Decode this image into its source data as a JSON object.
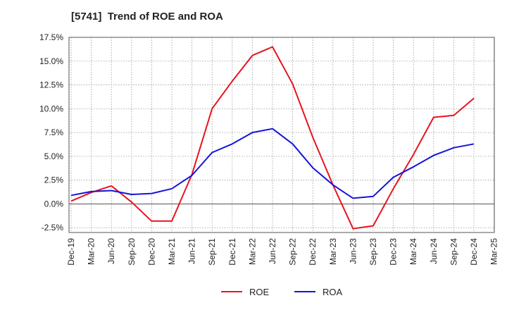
{
  "chart_data": {
    "type": "line",
    "title": "[5741]  Trend of ROE and ROA",
    "xlabel": "",
    "ylabel": "",
    "x": [
      "Dec-19",
      "Mar-20",
      "Jun-20",
      "Sep-20",
      "Dec-20",
      "Mar-21",
      "Jun-21",
      "Sep-21",
      "Dec-21",
      "Mar-22",
      "Jun-22",
      "Sep-22",
      "Dec-22",
      "Mar-23",
      "Jun-23",
      "Sep-23",
      "Dec-23",
      "Mar-24",
      "Jun-24",
      "Sep-24",
      "Dec-24",
      "Mar-25"
    ],
    "yticks": [
      "17.5%",
      "15.0%",
      "12.5%",
      "10.0%",
      "7.5%",
      "5.0%",
      "2.5%",
      "0.0%",
      "-2.5%"
    ],
    "ylim": [
      -3.0,
      17.5
    ],
    "grid": true,
    "legend_position": "bottom",
    "series": [
      {
        "name": "ROE",
        "color": "#e8141e",
        "values": [
          0.3,
          1.2,
          1.9,
          0.2,
          -1.8,
          -1.8,
          3.1,
          10.0,
          12.9,
          15.6,
          16.5,
          12.6,
          7.0,
          2.0,
          -2.6,
          -2.3,
          1.6,
          5.2,
          9.1,
          9.3,
          11.1,
          null
        ]
      },
      {
        "name": "ROA",
        "color": "#1414dc",
        "values": [
          0.9,
          1.3,
          1.4,
          1.0,
          1.1,
          1.6,
          3.0,
          5.4,
          6.3,
          7.5,
          7.9,
          6.3,
          3.8,
          2.0,
          0.6,
          0.8,
          2.8,
          3.9,
          5.1,
          5.9,
          6.3,
          null
        ]
      }
    ]
  }
}
